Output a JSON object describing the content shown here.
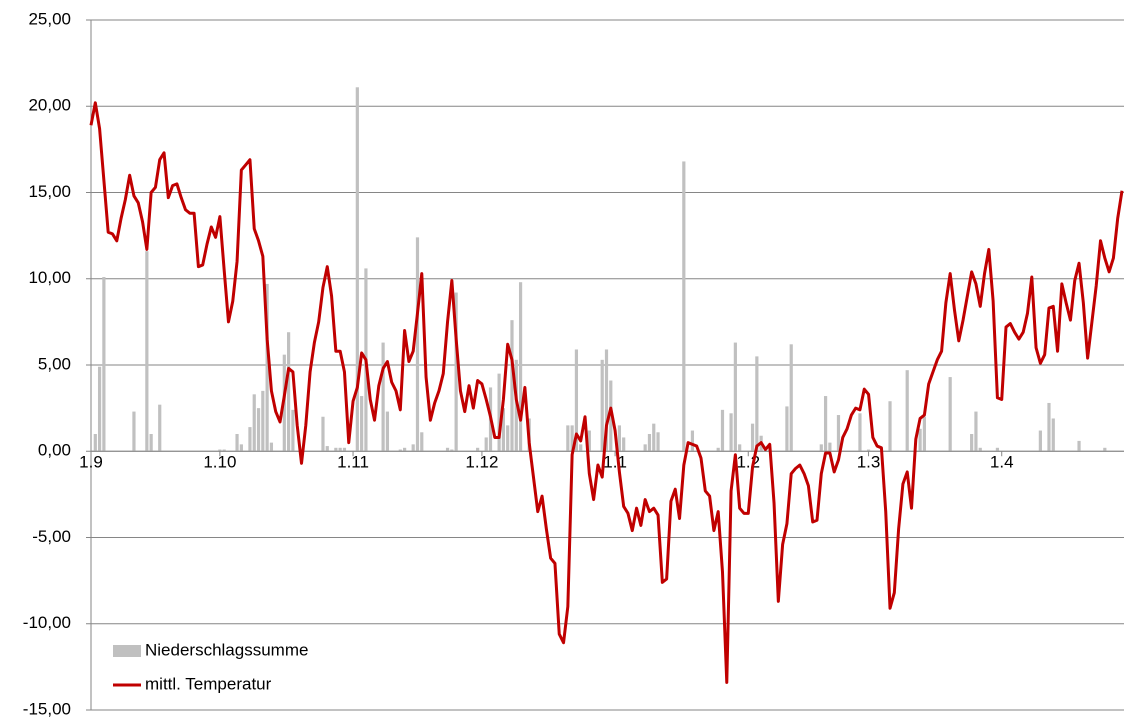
{
  "chart_data": {
    "type": "combo",
    "categories": [
      "1.9",
      null,
      null,
      null,
      null,
      null,
      null,
      null,
      null,
      null,
      null,
      null,
      null,
      null,
      null,
      null,
      null,
      null,
      null,
      null,
      null,
      null,
      null,
      null,
      null,
      null,
      null,
      null,
      null,
      null,
      "1.10",
      null,
      null,
      null,
      null,
      null,
      null,
      null,
      null,
      null,
      null,
      null,
      null,
      null,
      null,
      null,
      null,
      null,
      null,
      null,
      null,
      null,
      null,
      null,
      null,
      null,
      null,
      null,
      null,
      null,
      null,
      "1.11",
      null,
      null,
      null,
      null,
      null,
      null,
      null,
      null,
      null,
      null,
      null,
      null,
      null,
      null,
      null,
      null,
      null,
      null,
      null,
      null,
      null,
      null,
      null,
      null,
      null,
      null,
      null,
      null,
      null,
      "1.12",
      null,
      null,
      null,
      null,
      null,
      null,
      null,
      null,
      null,
      null,
      null,
      null,
      null,
      null,
      null,
      null,
      null,
      null,
      null,
      null,
      null,
      null,
      null,
      null,
      null,
      null,
      null,
      null,
      null,
      null,
      "1.1",
      null,
      null,
      null,
      null,
      null,
      null,
      null,
      null,
      null,
      null,
      null,
      null,
      null,
      null,
      null,
      null,
      null,
      null,
      null,
      null,
      null,
      null,
      null,
      null,
      null,
      null,
      null,
      null,
      null,
      null,
      "1.2",
      null,
      null,
      null,
      null,
      null,
      null,
      null,
      null,
      null,
      null,
      null,
      null,
      null,
      null,
      null,
      null,
      null,
      null,
      null,
      null,
      null,
      null,
      null,
      null,
      null,
      null,
      null,
      "1.3",
      null,
      null,
      null,
      null,
      null,
      null,
      null,
      null,
      null,
      null,
      null,
      null,
      null,
      null,
      null,
      null,
      null,
      null,
      null,
      null,
      null,
      null,
      null,
      null,
      null,
      null,
      null,
      null,
      null,
      null,
      "1.4",
      null,
      null,
      null,
      null,
      null,
      null,
      null,
      null,
      null,
      null,
      null,
      null,
      null,
      null,
      null,
      null,
      null,
      null,
      null,
      null,
      null,
      null,
      null,
      null,
      null,
      null,
      null,
      null
    ],
    "series": [
      {
        "name": "Niederschlagssumme",
        "type": "bar",
        "color": "#c0c0c0",
        "values": [
          0,
          1.0,
          4.9,
          10.1,
          0,
          0,
          0,
          0,
          0,
          0,
          2.3,
          0,
          0,
          11.6,
          1.0,
          0,
          2.7,
          0,
          0,
          0,
          0,
          0,
          0,
          0,
          0,
          0,
          0,
          0,
          0,
          0,
          0.1,
          0.1,
          0,
          0,
          1.0,
          0.4,
          0,
          1.4,
          3.3,
          2.5,
          3.5,
          9.7,
          0.5,
          0,
          0,
          5.6,
          6.9,
          2.4,
          0,
          0,
          0,
          0,
          0,
          0,
          2.0,
          0.3,
          0,
          0.2,
          0.2,
          0.2,
          0,
          0,
          21.1,
          3.2,
          10.6,
          0,
          0,
          0,
          6.3,
          2.3,
          0,
          0,
          0.1,
          0.2,
          0,
          0.4,
          12.4,
          1.1,
          0,
          0,
          0,
          0,
          0,
          0.2,
          0.1,
          9.2,
          0,
          0,
          0,
          0,
          0.2,
          0,
          0.8,
          3.7,
          0,
          4.5,
          2.5,
          1.5,
          7.6,
          5.3,
          9.8,
          0,
          1.9,
          0,
          0,
          0,
          0,
          0,
          0,
          0,
          0,
          1.5,
          1.5,
          5.9,
          0.4,
          0,
          1.2,
          0,
          0,
          5.3,
          5.9,
          4.1,
          0,
          1.5,
          0.8,
          0,
          0,
          0,
          0,
          0.4,
          1.0,
          1.6,
          1.1,
          0,
          0,
          0,
          0,
          0,
          16.8,
          0,
          1.2,
          0,
          0,
          0,
          0,
          0,
          0.2,
          2.4,
          0,
          2.2,
          6.3,
          0.4,
          0,
          0,
          1.6,
          5.5,
          0.9,
          0,
          0.1,
          0,
          0,
          0,
          2.6,
          6.2,
          0,
          0,
          0,
          0,
          0,
          0,
          0.4,
          3.2,
          0.5,
          0,
          2.1,
          0,
          0,
          0,
          0,
          2.2,
          0,
          0.1,
          0,
          0,
          0,
          0,
          2.9,
          0,
          0,
          0,
          4.7,
          0,
          0,
          1.3,
          2.0,
          0,
          0,
          0,
          0,
          0,
          4.3,
          0,
          0,
          0,
          0,
          1.0,
          2.3,
          0.2,
          0,
          0,
          0,
          0.2,
          0,
          0,
          0,
          0,
          0,
          0,
          0,
          0,
          0,
          1.2,
          0,
          2.8,
          1.9,
          0,
          0,
          0,
          0,
          0,
          0.6,
          0,
          0,
          0,
          0,
          0,
          0.2,
          0,
          0,
          0,
          0
        ]
      },
      {
        "name": "mittl. Temperatur",
        "type": "line",
        "color": "#c00000",
        "values": [
          18.9,
          20.2,
          18.7,
          15.7,
          12.7,
          12.6,
          12.2,
          13.5,
          14.6,
          16.0,
          14.8,
          14.4,
          13.3,
          11.7,
          15.0,
          15.3,
          16.9,
          17.3,
          14.7,
          15.4,
          15.5,
          14.7,
          14.0,
          13.8,
          13.8,
          10.7,
          10.8,
          12.0,
          13.0,
          12.4,
          13.6,
          10.5,
          7.5,
          8.7,
          11.0,
          16.3,
          16.6,
          16.9,
          12.9,
          12.2,
          11.3,
          6.5,
          3.5,
          2.3,
          1.7,
          3.2,
          4.8,
          4.6,
          1.5,
          -0.7,
          1.5,
          4.6,
          6.3,
          7.5,
          9.5,
          10.7,
          9.0,
          5.8,
          5.8,
          4.6,
          0.5,
          2.9,
          3.7,
          5.7,
          5.3,
          3.0,
          1.8,
          3.8,
          4.8,
          5.2,
          4.0,
          3.5,
          2.4,
          7.0,
          5.2,
          5.8,
          8.0,
          10.3,
          4.3,
          1.8,
          2.8,
          3.5,
          4.5,
          7.5,
          9.9,
          6.5,
          3.5,
          2.3,
          3.8,
          2.5,
          4.1,
          3.9,
          3.0,
          2.0,
          0.8,
          0.8,
          3.0,
          6.2,
          5.3,
          3.0,
          1.8,
          3.7,
          0.5,
          -1.5,
          -3.5,
          -2.6,
          -4.5,
          -6.2,
          -6.5,
          -10.6,
          -11.1,
          -9.0,
          -0.2,
          1.0,
          0.6,
          2.0,
          -1.3,
          -2.8,
          -0.8,
          -1.5,
          1.5,
          2.5,
          1.2,
          -1.2,
          -3.2,
          -3.6,
          -4.6,
          -3.3,
          -4.3,
          -2.8,
          -3.5,
          -3.3,
          -3.7,
          -7.6,
          -7.4,
          -2.9,
          -2.2,
          -3.9,
          -0.8,
          0.5,
          0.4,
          0.3,
          -0.4,
          -2.3,
          -2.6,
          -4.6,
          -3.5,
          -7.0,
          -13.4,
          -2.3,
          -0.2,
          -3.3,
          -3.6,
          -3.6,
          -0.9,
          0.3,
          0.5,
          0.1,
          0.4,
          -3.0,
          -8.7,
          -5.4,
          -4.2,
          -1.3,
          -1.0,
          -0.8,
          -1.3,
          -2.0,
          -4.1,
          -4.0,
          -1.3,
          -0.1,
          -0.1,
          -1.2,
          -0.5,
          0.8,
          1.3,
          2.1,
          2.5,
          2.4,
          3.6,
          3.3,
          0.8,
          0.3,
          0.2,
          -3.5,
          -9.1,
          -8.2,
          -4.5,
          -1.9,
          -1.2,
          -3.3,
          0.7,
          1.9,
          2.1,
          3.9,
          4.6,
          5.3,
          5.8,
          8.6,
          10.3,
          8.2,
          6.4,
          7.6,
          9.0,
          10.4,
          9.7,
          8.4,
          10.3,
          11.7,
          8.7,
          3.1,
          3.0,
          7.2,
          7.4,
          6.9,
          6.5,
          6.9,
          8.0,
          10.1,
          6.0,
          5.1,
          5.6,
          8.3,
          8.4,
          5.8,
          9.7,
          8.6,
          7.6,
          9.9,
          10.9,
          8.6,
          5.4,
          7.5,
          9.6,
          12.2,
          11.2,
          10.4,
          11.2,
          13.5,
          15.1
        ]
      }
    ],
    "ylim": [
      -15,
      25
    ],
    "yticks": [
      {
        "value": -15,
        "label": "-15,00"
      },
      {
        "value": -10,
        "label": "-10,00"
      },
      {
        "value": -5,
        "label": "-5,00"
      },
      {
        "value": 0,
        "label": "0,00"
      },
      {
        "value": 5,
        "label": "5,00"
      },
      {
        "value": 10,
        "label": "10,00"
      },
      {
        "value": 15,
        "label": "15,00"
      },
      {
        "value": 20,
        "label": "20,00"
      },
      {
        "value": 25,
        "label": "25,00"
      }
    ],
    "grid": true,
    "legend": "lower left"
  }
}
